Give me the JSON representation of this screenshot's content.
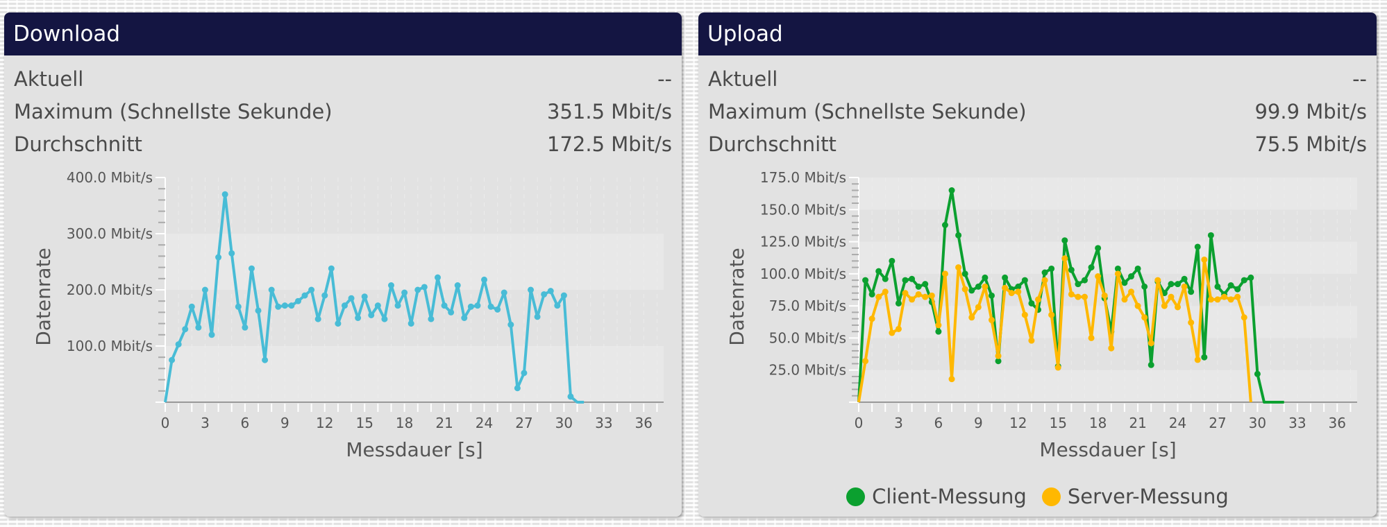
{
  "panels": [
    {
      "title": "Download",
      "stats": [
        {
          "label": "Aktuell",
          "value": "--"
        },
        {
          "label": "Maximum (Schnellste Sekunde)",
          "value": "351.5 Mbit/s"
        },
        {
          "label": "Durchschnitt",
          "value": "172.5 Mbit/s"
        }
      ]
    },
    {
      "title": "Upload",
      "stats": [
        {
          "label": "Aktuell",
          "value": "--"
        },
        {
          "label": "Maximum (Schnellste Sekunde)",
          "value": "99.9 Mbit/s"
        },
        {
          "label": "Durchschnitt",
          "value": "75.5 Mbit/s"
        }
      ],
      "legend": [
        {
          "label": "Client-Messung",
          "color": "#0ba02f"
        },
        {
          "label": "Server-Messung",
          "color": "#ffb800"
        }
      ]
    }
  ],
  "colors": {
    "header_bg": "#141542",
    "panel_bg": "#e2e2e2",
    "download_line": "#48bcd6",
    "client_line": "#0ba02f",
    "server_line": "#ffb800"
  },
  "chart_data": [
    {
      "type": "line",
      "title": "Download",
      "xlabel": "Messdauer [s]",
      "ylabel": "Datenrate",
      "xlim": [
        0,
        37.5
      ],
      "ylim": [
        0,
        400
      ],
      "x_ticks": [
        "0",
        "3",
        "6",
        "9",
        "12",
        "15",
        "18",
        "21",
        "24",
        "27",
        "30",
        "33",
        "36"
      ],
      "y_ticks": [
        "100.0 Mbit/s",
        "200.0 Mbit/s",
        "300.0 Mbit/s",
        "400.0 Mbit/s"
      ],
      "x_step": 0.5,
      "series": [
        {
          "name": "Download",
          "color": "#48bcd6",
          "values": [
            0,
            75,
            103,
            130,
            170,
            133,
            200,
            120,
            258,
            370,
            265,
            170,
            133,
            238,
            163,
            75,
            200,
            170,
            172,
            172,
            180,
            190,
            200,
            148,
            190,
            238,
            140,
            172,
            185,
            150,
            188,
            155,
            172,
            148,
            208,
            172,
            195,
            140,
            200,
            205,
            148,
            222,
            172,
            160,
            208,
            150,
            170,
            172,
            218,
            170,
            165,
            195,
            138,
            25,
            52,
            200,
            152,
            192,
            198,
            172,
            190,
            10,
            0,
            0
          ]
        }
      ]
    },
    {
      "type": "line",
      "title": "Upload",
      "xlabel": "Messdauer [s]",
      "ylabel": "Datenrate",
      "xlim": [
        0,
        37.5
      ],
      "ylim": [
        0,
        175
      ],
      "x_ticks": [
        "0",
        "3",
        "6",
        "9",
        "12",
        "15",
        "18",
        "21",
        "24",
        "27",
        "30",
        "33",
        "36"
      ],
      "y_ticks": [
        "25.0 Mbit/s",
        "50.0 Mbit/s",
        "75.0 Mbit/s",
        "100.0 Mbit/s",
        "125.0 Mbit/s",
        "150.0 Mbit/s",
        "175.0 Mbit/s"
      ],
      "x_step": 0.5,
      "legend_position": "bottom",
      "series": [
        {
          "name": "Client-Messung",
          "color": "#0ba02f",
          "values": [
            0,
            95,
            84,
            102,
            96,
            110,
            77,
            95,
            96,
            90,
            92,
            78,
            55,
            138,
            165,
            130,
            100,
            87,
            90,
            97,
            83,
            32,
            97,
            88,
            90,
            95,
            77,
            72,
            101,
            104,
            28,
            126,
            103,
            92,
            95,
            105,
            120,
            81,
            55,
            104,
            93,
            98,
            104,
            90,
            29,
            94,
            85,
            92,
            92,
            96,
            86,
            121,
            35,
            130,
            90,
            84,
            91,
            88,
            95,
            97,
            22,
            0,
            0,
            0,
            0
          ]
        },
        {
          "name": "Server-Messung",
          "color": "#ffb800",
          "values": [
            0,
            32,
            65,
            82,
            86,
            54,
            57,
            85,
            80,
            84,
            82,
            83,
            60,
            100,
            18,
            105,
            88,
            66,
            74,
            90,
            64,
            36,
            89,
            85,
            86,
            68,
            48,
            80,
            95,
            68,
            27,
            112,
            84,
            82,
            82,
            50,
            98,
            83,
            42,
            100,
            80,
            86,
            75,
            66,
            46,
            95,
            75,
            82,
            74,
            90,
            62,
            33,
            111,
            80,
            80,
            82,
            80,
            82,
            66,
            0
          ]
        }
      ]
    }
  ]
}
